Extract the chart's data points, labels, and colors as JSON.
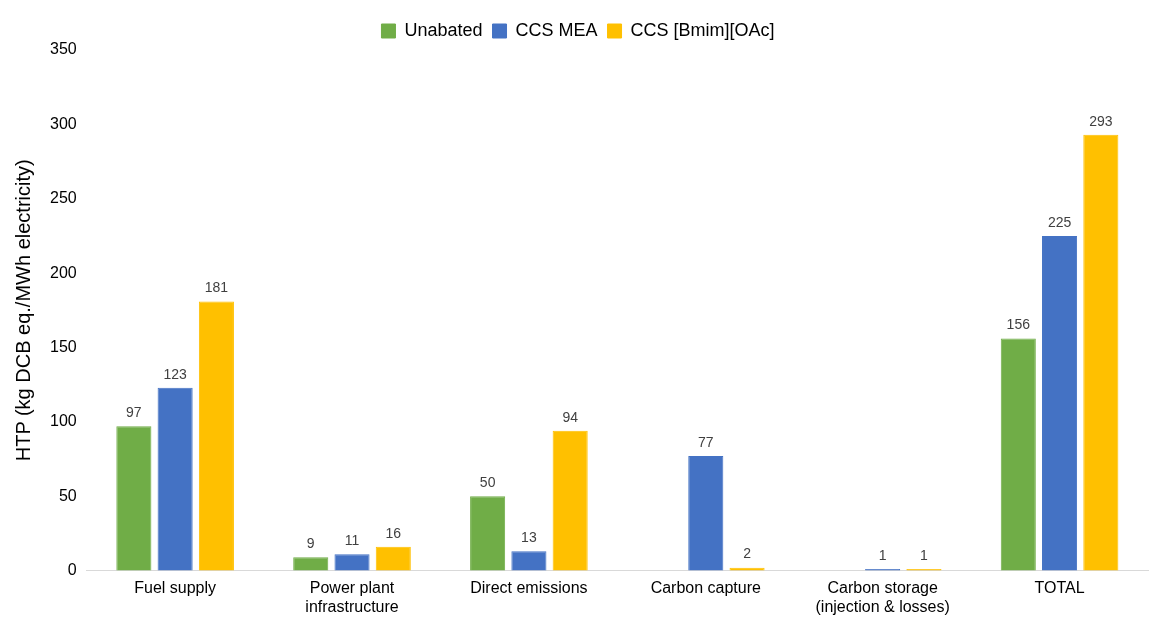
{
  "chart_data": {
    "type": "bar",
    "ylabel": "HTP (kg DCB eq./MWh electricity)",
    "categories": [
      "Fuel supply",
      "Power plant infrastructure",
      "Direct emissions",
      "Carbon capture",
      "Carbon storage (injection & losses)",
      "TOTAL"
    ],
    "series": [
      {
        "name": "Unabated",
        "color": "#70ad47",
        "values": [
          97,
          9,
          50,
          null,
          null,
          156
        ]
      },
      {
        "name": "CCS MEA",
        "color": "#4472c4",
        "values": [
          123,
          11,
          13,
          77,
          1,
          225
        ]
      },
      {
        "name": "CCS [Bmim][OAc]",
        "color": "#ffc000",
        "values": [
          181,
          16,
          94,
          2,
          1,
          293
        ]
      }
    ],
    "ylim": [
      0,
      350
    ],
    "yticks": [
      0,
      50,
      100,
      150,
      200,
      250,
      300,
      350
    ],
    "grid": false,
    "legend": "top",
    "data_labels": true
  }
}
